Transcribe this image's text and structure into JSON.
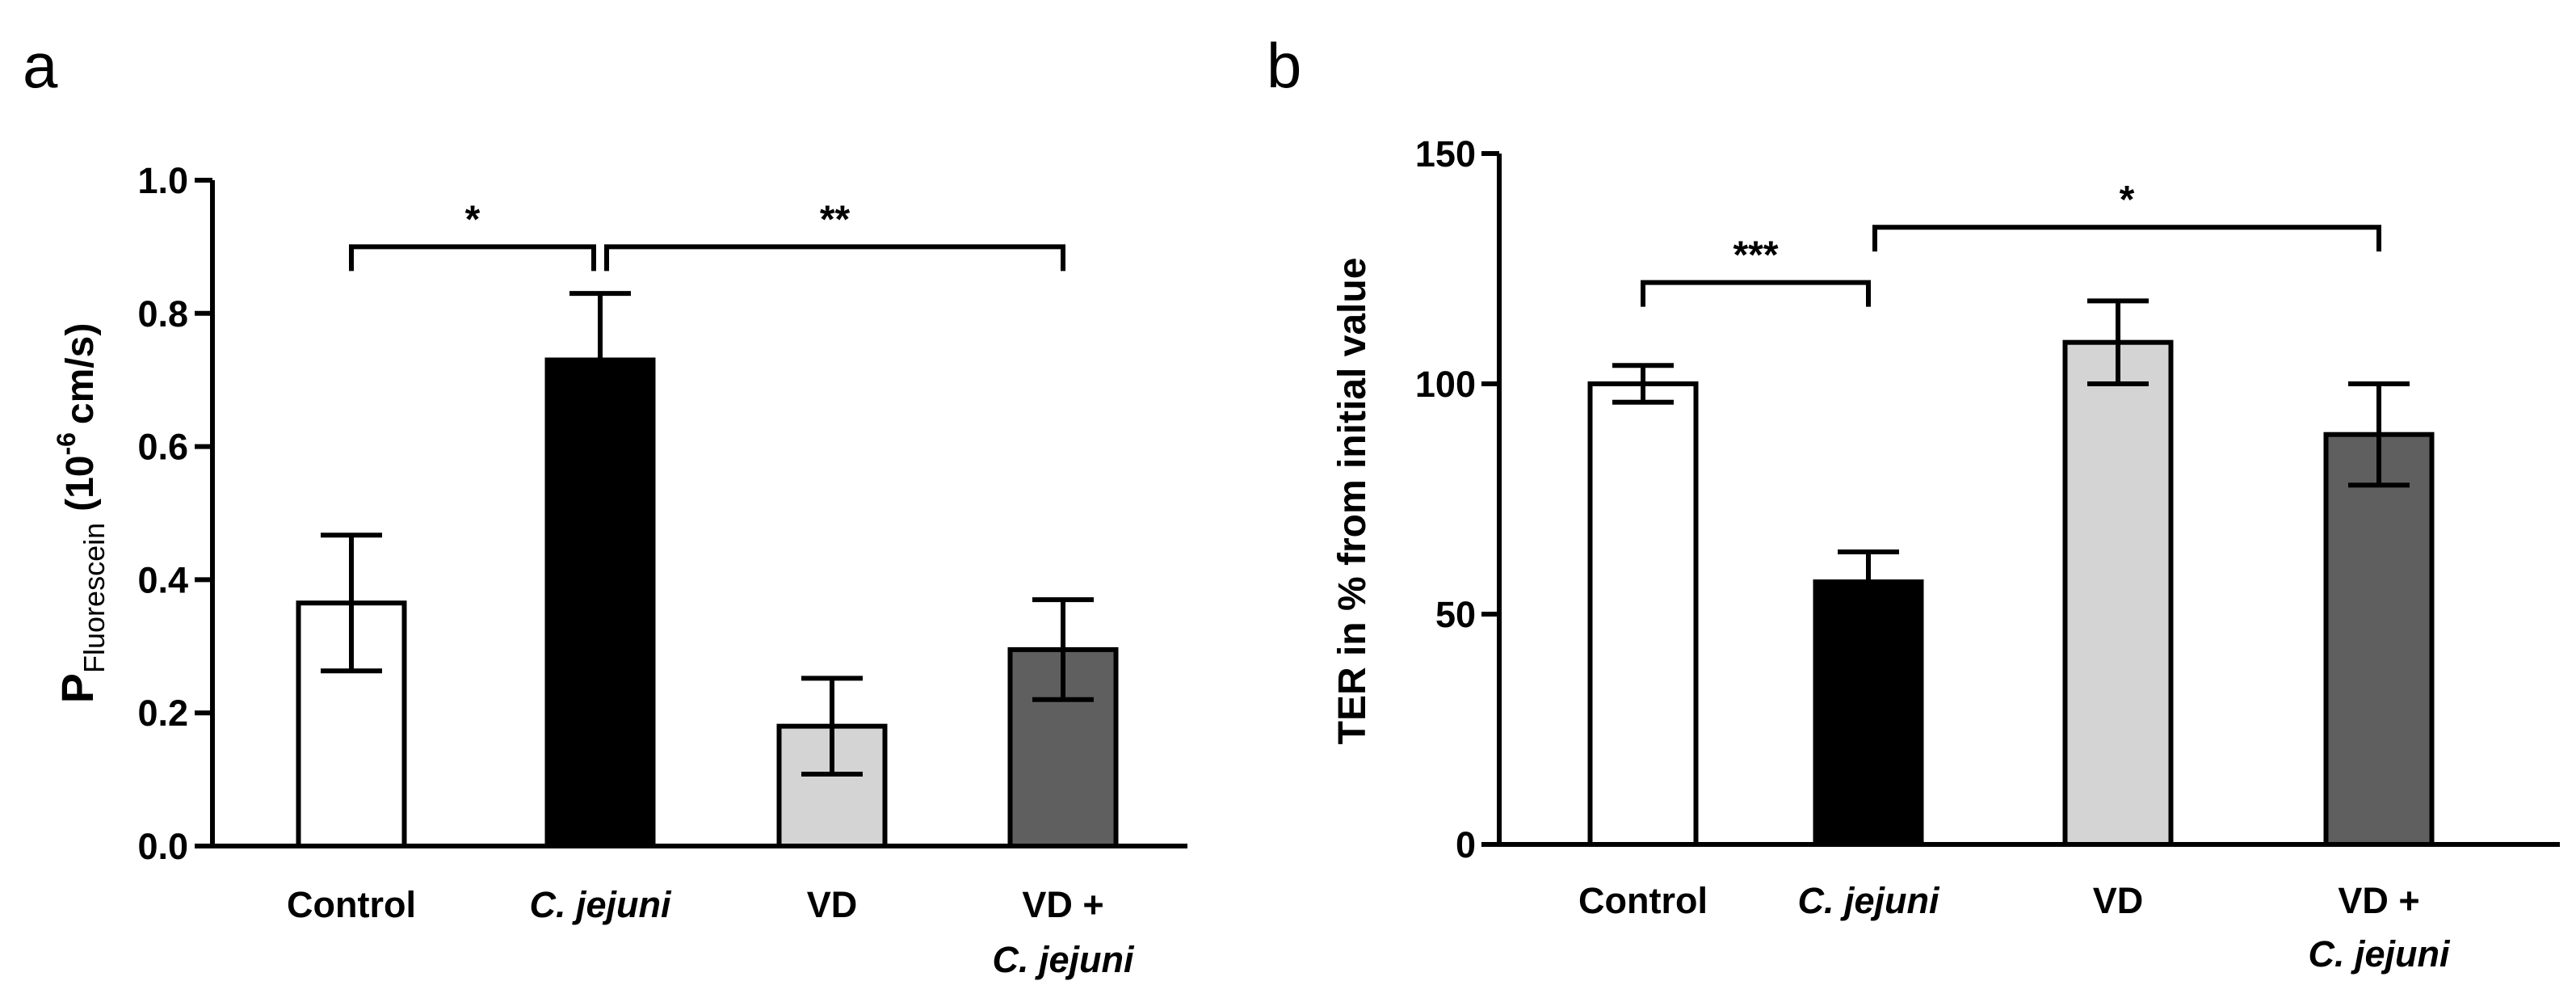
{
  "chart_data": [
    {
      "type": "bar",
      "panel": "a",
      "title": "",
      "xlabel": "",
      "ylabel": {
        "main": "P",
        "subscript": "Fluorescein",
        "pre_unit": "(10",
        "superscript": "-6",
        "post_unit": "cm/s)"
      },
      "ylim": [
        0,
        1.0
      ],
      "yticks": [
        "0.0",
        "0.2",
        "0.4",
        "0.6",
        "0.8",
        "1.0"
      ],
      "categories": [
        {
          "line1": "Control",
          "line2": "",
          "italic1": false
        },
        {
          "line1": "C. jejuni",
          "line2": "",
          "italic1": true
        },
        {
          "line1": "VD",
          "line2": "",
          "italic1": false
        },
        {
          "line1": "VD +",
          "line2": "C. jejuni",
          "italic1": false
        }
      ],
      "values": [
        0.365,
        0.73,
        0.18,
        0.295
      ],
      "errors": [
        0.102,
        0.1,
        0.072,
        0.075
      ],
      "bar_colors": [
        "#ffffff",
        "#000000",
        "#d4d4d4",
        "#5f5f5f"
      ],
      "significance": [
        {
          "from": 0,
          "to": 1,
          "label": "*",
          "level": 0.9
        },
        {
          "from": 1,
          "to": 3,
          "label": "**",
          "level": 0.9
        }
      ]
    },
    {
      "type": "bar",
      "panel": "b",
      "title": "",
      "xlabel": "",
      "ylabel": {
        "main": "TER in % from initial value"
      },
      "ylim": [
        0,
        150
      ],
      "yticks": [
        "0",
        "50",
        "100",
        "150"
      ],
      "categories": [
        {
          "line1": "Control",
          "line2": "",
          "italic1": false
        },
        {
          "line1": "C. jejuni",
          "line2": "",
          "italic1": true
        },
        {
          "line1": "VD",
          "line2": "",
          "italic1": false
        },
        {
          "line1": "VD +",
          "line2": "C. jejuni",
          "italic1": false
        }
      ],
      "values": [
        100,
        57,
        109,
        89
      ],
      "errors": [
        4,
        6.5,
        9,
        11
      ],
      "bar_colors": [
        "#ffffff",
        "#000000",
        "#d4d4d4",
        "#5f5f5f"
      ],
      "significance": [
        {
          "from": 0,
          "to": 1,
          "label": "***",
          "level": 122
        },
        {
          "from": 1,
          "to": 3,
          "label": "*",
          "level": 134
        }
      ]
    }
  ]
}
